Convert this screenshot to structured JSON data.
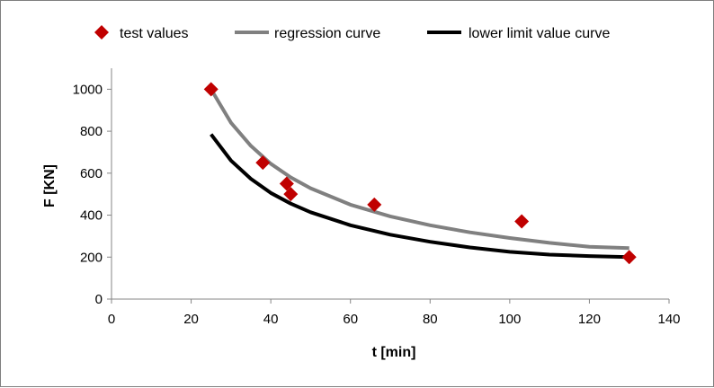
{
  "chart_data": {
    "type": "scatter",
    "title": "",
    "xlabel": "t [min]",
    "ylabel": "F [KN]",
    "xlim": [
      0,
      140
    ],
    "ylim": [
      0,
      1100
    ],
    "x_ticks": [
      0,
      20,
      40,
      60,
      80,
      100,
      120,
      140
    ],
    "y_ticks": [
      0,
      200,
      400,
      600,
      800,
      1000
    ],
    "x_tick_labels": [
      "0",
      "20",
      "40",
      "60",
      "80",
      "100",
      "120",
      "140"
    ],
    "y_tick_labels": [
      "0",
      "200",
      "400",
      "600",
      "800",
      "1000"
    ],
    "grid": false,
    "legend_position": "top",
    "series": [
      {
        "name": "test values",
        "kind": "markers",
        "marker": "diamond",
        "color": "#c00000",
        "x": [
          25,
          38,
          44,
          45,
          66,
          103,
          130
        ],
        "y": [
          1000,
          650,
          550,
          500,
          450,
          370,
          200
        ]
      },
      {
        "name": "regression curve",
        "kind": "line",
        "color": "#808080",
        "x": [
          25,
          30,
          35,
          40,
          45,
          50,
          60,
          70,
          80,
          90,
          100,
          110,
          120,
          130
        ],
        "y": [
          1000,
          840,
          730,
          645,
          580,
          528,
          450,
          394,
          352,
          318,
          291,
          268,
          249,
          243
        ]
      },
      {
        "name": "lower limit value curve",
        "kind": "line",
        "color": "#000000",
        "x": [
          25,
          30,
          35,
          40,
          45,
          50,
          60,
          70,
          80,
          90,
          100,
          110,
          120,
          130
        ],
        "y": [
          785,
          660,
          573,
          506,
          455,
          414,
          352,
          307,
          273,
          246,
          225,
          212,
          205,
          200
        ]
      }
    ]
  }
}
